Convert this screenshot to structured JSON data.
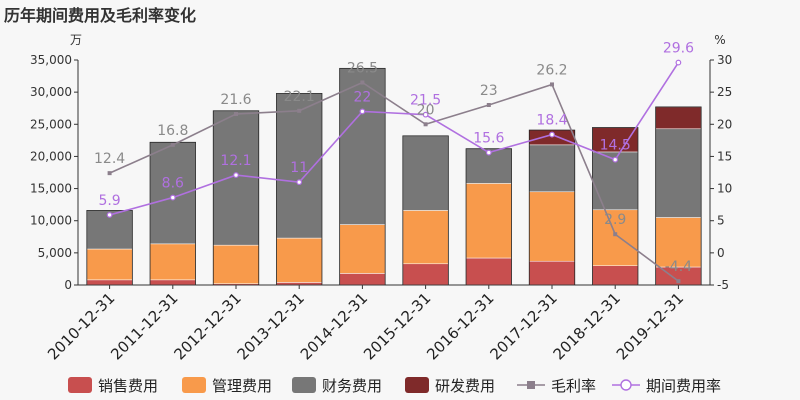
{
  "title": "历年期间费用及毛利率变化",
  "colors": {
    "sales": "#c84f4f",
    "admin": "#f89a4b",
    "finance": "#777777",
    "rd": "#7f2a2a",
    "gross_margin": "#8c7f8c",
    "period_rate": "#b070e0"
  },
  "chart_data": {
    "type": "bar",
    "title": "历年期间费用及毛利率变化",
    "categories": [
      "2010-12-31",
      "2011-12-31",
      "2012-12-31",
      "2013-12-31",
      "2014-12-31",
      "2015-12-31",
      "2016-12-31",
      "2017-12-31",
      "2018-12-31",
      "2019-12-31"
    ],
    "y_left_unit": "万",
    "y_right_unit": "%",
    "ylim_left": [
      0,
      35000
    ],
    "yticks_left": [
      0,
      5000,
      10000,
      15000,
      20000,
      25000,
      30000,
      35000
    ],
    "yticks_left_labels": [
      "0",
      "5,000",
      "10,000",
      "15,000",
      "20,000",
      "25,000",
      "30,000",
      "35,000"
    ],
    "ylim_right": [
      -5,
      30
    ],
    "yticks_right": [
      -5,
      0,
      5,
      10,
      15,
      20,
      25,
      30
    ],
    "series": [
      {
        "name": "销售费用",
        "kind": "bar",
        "stack": true,
        "color_key": "sales",
        "values": [
          800,
          800,
          200,
          400,
          1800,
          3300,
          4200,
          3700,
          3000,
          2800
        ]
      },
      {
        "name": "管理费用",
        "kind": "bar",
        "stack": true,
        "color_key": "admin",
        "values": [
          4800,
          5600,
          6000,
          6900,
          7600,
          8300,
          11600,
          10800,
          8700,
          7700
        ]
      },
      {
        "name": "财务费用",
        "kind": "bar",
        "stack": true,
        "color_key": "finance",
        "values": [
          6000,
          15800,
          20900,
          22500,
          24300,
          11600,
          5400,
          7300,
          9000,
          13800
        ]
      },
      {
        "name": "研发费用",
        "kind": "bar",
        "stack": true,
        "color_key": "rd",
        "values": [
          0,
          0,
          0,
          0,
          0,
          0,
          0,
          2300,
          3800,
          3400
        ]
      },
      {
        "name": "毛利率",
        "kind": "line",
        "axis": "right",
        "marker": "square",
        "color_key": "gross_margin",
        "values": [
          12.4,
          16.8,
          21.6,
          22.1,
          26.5,
          20,
          23,
          26.2,
          2.9,
          -4.4
        ],
        "labels": [
          "12.4",
          "16.8",
          "21.6",
          "22.1",
          "26.5",
          "20",
          "23",
          "26.2",
          "2.9",
          "-4.4"
        ]
      },
      {
        "name": "期间费用率",
        "kind": "line",
        "axis": "right",
        "marker": "circle",
        "color_key": "period_rate",
        "values": [
          5.9,
          8.6,
          12.1,
          11,
          22,
          21.5,
          15.6,
          18.4,
          14.5,
          29.6
        ],
        "labels": [
          "5.9",
          "8.6",
          "12.1",
          "11",
          "22",
          "21.5",
          "15.6",
          "18.4",
          "14.5",
          "29.6"
        ]
      }
    ],
    "legend_position": "bottom",
    "grid": false
  }
}
